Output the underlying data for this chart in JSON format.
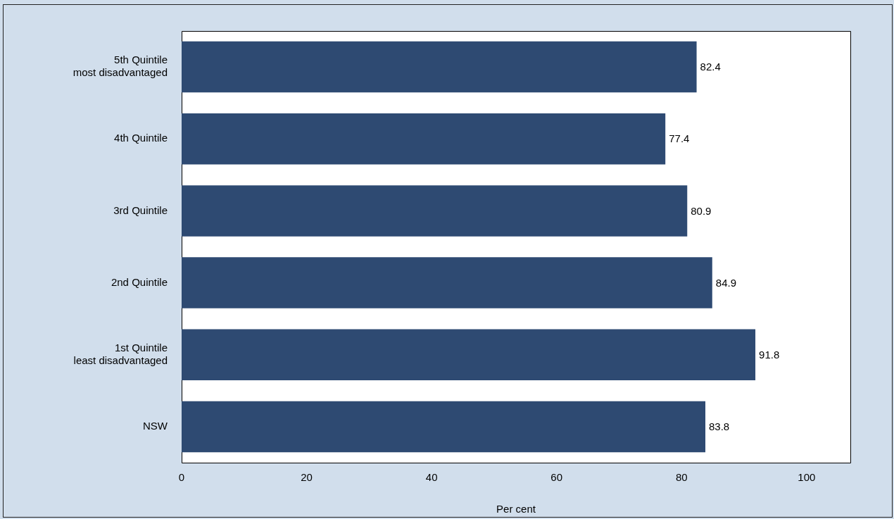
{
  "chart_data": {
    "type": "bar",
    "orientation": "horizontal",
    "xlabel": "Per cent",
    "categories": [
      "5th Quintile\nmost disadvantaged",
      "4th Quintile",
      "3rd Quintile",
      "2nd Quintile",
      "1st Quintile\nleast disadvantaged",
      "NSW"
    ],
    "values": [
      82.4,
      77.4,
      80.9,
      84.9,
      91.8,
      83.8
    ],
    "color": "#2e4a72",
    "xlim": [
      0,
      107
    ],
    "xticks": [
      0,
      20,
      40,
      60,
      80,
      100
    ],
    "grid": false,
    "legend": false,
    "data_labels": true
  }
}
